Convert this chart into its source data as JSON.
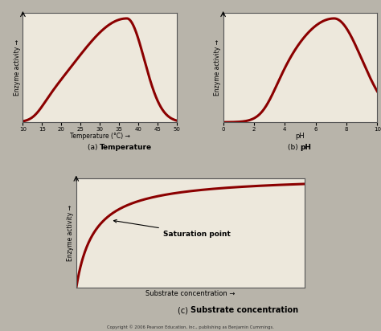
{
  "bg_color": "#ede8dc",
  "outer_bg": "#b8b4aa",
  "line_color": "#8b0000",
  "line_width": 2.2,
  "panel_a": {
    "title_a": "(a) ",
    "title_b": "Temperature",
    "xlabel": "Temperature (°C) →",
    "ylabel": "Enzyme activity →",
    "xticks": [
      10,
      15,
      20,
      25,
      30,
      35,
      40,
      45,
      50
    ],
    "xlim": [
      10,
      50
    ],
    "ylim": [
      0,
      1.05
    ]
  },
  "panel_b": {
    "title_a": "(b) ",
    "title_b": "pH",
    "xlabel": "pH",
    "ylabel": "Enzyme activity →",
    "xticks": [
      0,
      2,
      4,
      6,
      8,
      10
    ],
    "xlim": [
      0,
      10
    ],
    "ylim": [
      0,
      1.05
    ]
  },
  "panel_c": {
    "title_a": "(c) ",
    "title_b": "Substrate concentration",
    "xlabel": "Substrate concentration →",
    "ylabel": "Enzyme activity →",
    "annotation": "Saturation point",
    "xlim": [
      0,
      10
    ],
    "ylim": [
      0,
      1.05
    ]
  },
  "copyright": "Copyright © 2006 Pearson Education, Inc., publishing as Benjamin Cummings."
}
